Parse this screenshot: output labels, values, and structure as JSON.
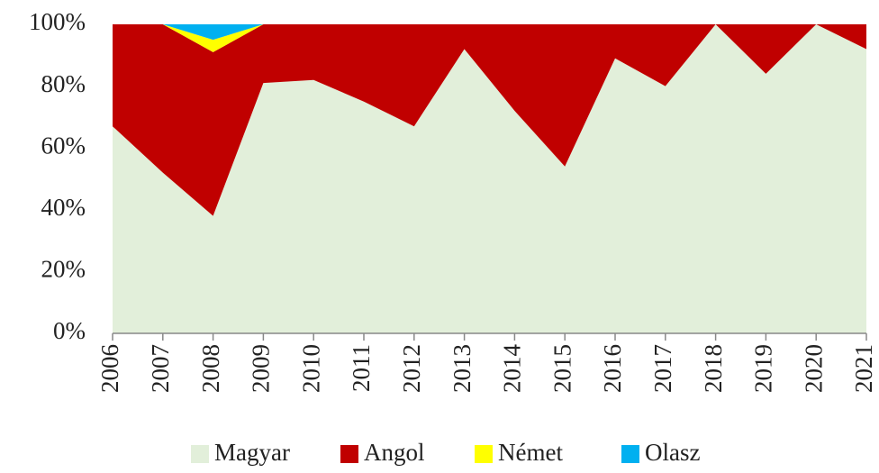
{
  "chart_data": {
    "type": "stacked_area",
    "categories": [
      "2006",
      "2007",
      "2008",
      "2009",
      "2010",
      "2011",
      "2012",
      "2013",
      "2014",
      "2015",
      "2016",
      "2017",
      "2018",
      "2019",
      "2020",
      "2021"
    ],
    "series": [
      {
        "name": "Magyar",
        "color": "#e2efda",
        "values": [
          67,
          52,
          38,
          81,
          82,
          75,
          67,
          92,
          72,
          54,
          89,
          80,
          100,
          84,
          100,
          92
        ]
      },
      {
        "name": "Angol",
        "color": "#c00000",
        "values": [
          33,
          48,
          53,
          19,
          18,
          25,
          33,
          8,
          28,
          46,
          11,
          20,
          0,
          16,
          0,
          8
        ]
      },
      {
        "name": "Német",
        "color": "#ffff00",
        "values": [
          0,
          0,
          4,
          0,
          0,
          0,
          0,
          0,
          0,
          0,
          0,
          0,
          0,
          0,
          0,
          0
        ]
      },
      {
        "name": "Olasz",
        "color": "#00b0f0",
        "values": [
          0,
          0,
          5,
          0,
          0,
          0,
          0,
          0,
          0,
          0,
          0,
          0,
          0,
          0,
          0,
          0
        ]
      }
    ],
    "ylim": [
      0,
      100
    ],
    "yticks": [
      {
        "value": 0,
        "label": "0%"
      },
      {
        "value": 20,
        "label": "20%"
      },
      {
        "value": 40,
        "label": "40%"
      },
      {
        "value": 60,
        "label": "60%"
      },
      {
        "value": 80,
        "label": "80%"
      },
      {
        "value": 100,
        "label": "100%"
      }
    ],
    "legend": "bottom"
  }
}
